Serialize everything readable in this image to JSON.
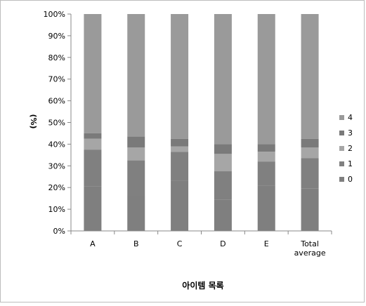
{
  "chart_data": {
    "type": "bar",
    "stacked": true,
    "percent": true,
    "categories": [
      "A",
      "B",
      "C",
      "D",
      "E",
      "Total average"
    ],
    "category_lines": [
      [
        "A"
      ],
      [
        "B"
      ],
      [
        "C"
      ],
      [
        "D"
      ],
      [
        "E"
      ],
      [
        "Total",
        "average"
      ]
    ],
    "series": [
      {
        "name": "0",
        "color": "#7f7f7f",
        "values": [
          20.5,
          16.5,
          23.0,
          14.5,
          21.0,
          19.5
        ]
      },
      {
        "name": "1",
        "color": "#808080",
        "values": [
          17.0,
          16.0,
          13.5,
          13.0,
          11.0,
          14.0
        ]
      },
      {
        "name": "2",
        "color": "#a6a6a6",
        "values": [
          5.0,
          6.0,
          2.5,
          8.0,
          4.5,
          5.0
        ]
      },
      {
        "name": "3",
        "color": "#7a7a7a",
        "values": [
          2.5,
          5.0,
          3.5,
          4.5,
          3.5,
          4.0
        ]
      },
      {
        "name": "4",
        "color": "#9a9a9a",
        "values": [
          55.0,
          56.5,
          57.5,
          60.0,
          60.0,
          57.5
        ]
      }
    ],
    "xlabel": "아이템 목록",
    "ylabel": "(%)",
    "ylim": [
      0,
      100
    ],
    "yticks": [
      "0%",
      "10%",
      "20%",
      "30%",
      "40%",
      "50%",
      "60%",
      "70%",
      "80%",
      "90%",
      "100%"
    ],
    "grid": false,
    "legend": "right"
  }
}
